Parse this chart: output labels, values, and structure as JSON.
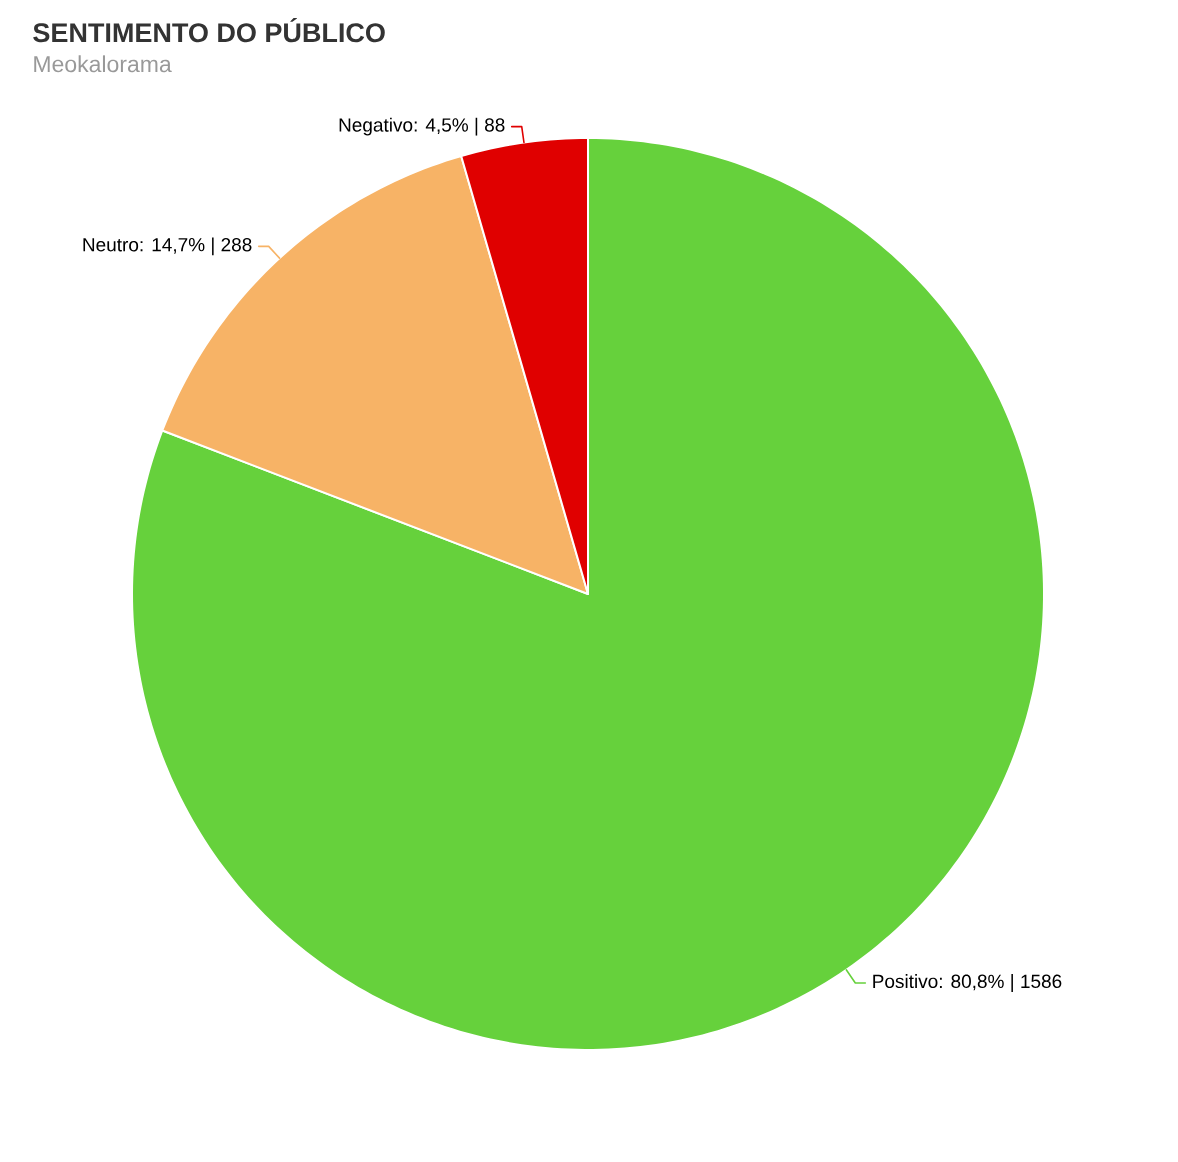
{
  "chart_data": {
    "type": "pie",
    "title": "SENTIMENTO DO PÚBLICO",
    "subtitle": "Meokalorama",
    "categories": [
      "Positivo",
      "Neutro",
      "Negativo"
    ],
    "values": [
      1586,
      288,
      88
    ],
    "colors": [
      "#66d13c",
      "#f7b366",
      "#e00000"
    ],
    "value_labels": [
      ": 80,8% | 1586",
      ": 14,7% | 288",
      ": 4,5% | 88"
    ]
  }
}
